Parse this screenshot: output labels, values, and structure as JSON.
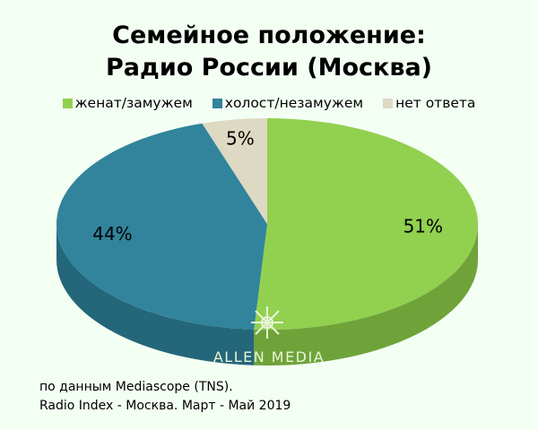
{
  "title_line1": "Семейное положение:",
  "title_line2": "Радио России (Москва)",
  "watermark": "ALLEN MEDIA",
  "source_line1": "по данным Mediascope (TNS).",
  "source_line2": "Radio Index - Москва. Март - Май 2019",
  "legend": [
    {
      "label": "женат/замужем",
      "color": "#92d050"
    },
    {
      "label": "холост/незамужем",
      "color": "#31849b"
    },
    {
      "label": "нет ответа",
      "color": "#ddd9c3"
    }
  ],
  "chart_data": {
    "type": "pie",
    "title": "Семейное положение: Радио России (Москва)",
    "legend_position": "top",
    "slices": [
      {
        "label": "женат/замужем",
        "value": 51,
        "display": "51%",
        "color": "#92d050",
        "side_color": "#6fa33a"
      },
      {
        "label": "холост/незамужем",
        "value": 44,
        "display": "44%",
        "color": "#31849b",
        "side_color": "#24667a"
      },
      {
        "label": "нет ответа",
        "value": 5,
        "display": "5%",
        "color": "#ddd9c3",
        "side_color": "#b8b39a"
      }
    ]
  }
}
